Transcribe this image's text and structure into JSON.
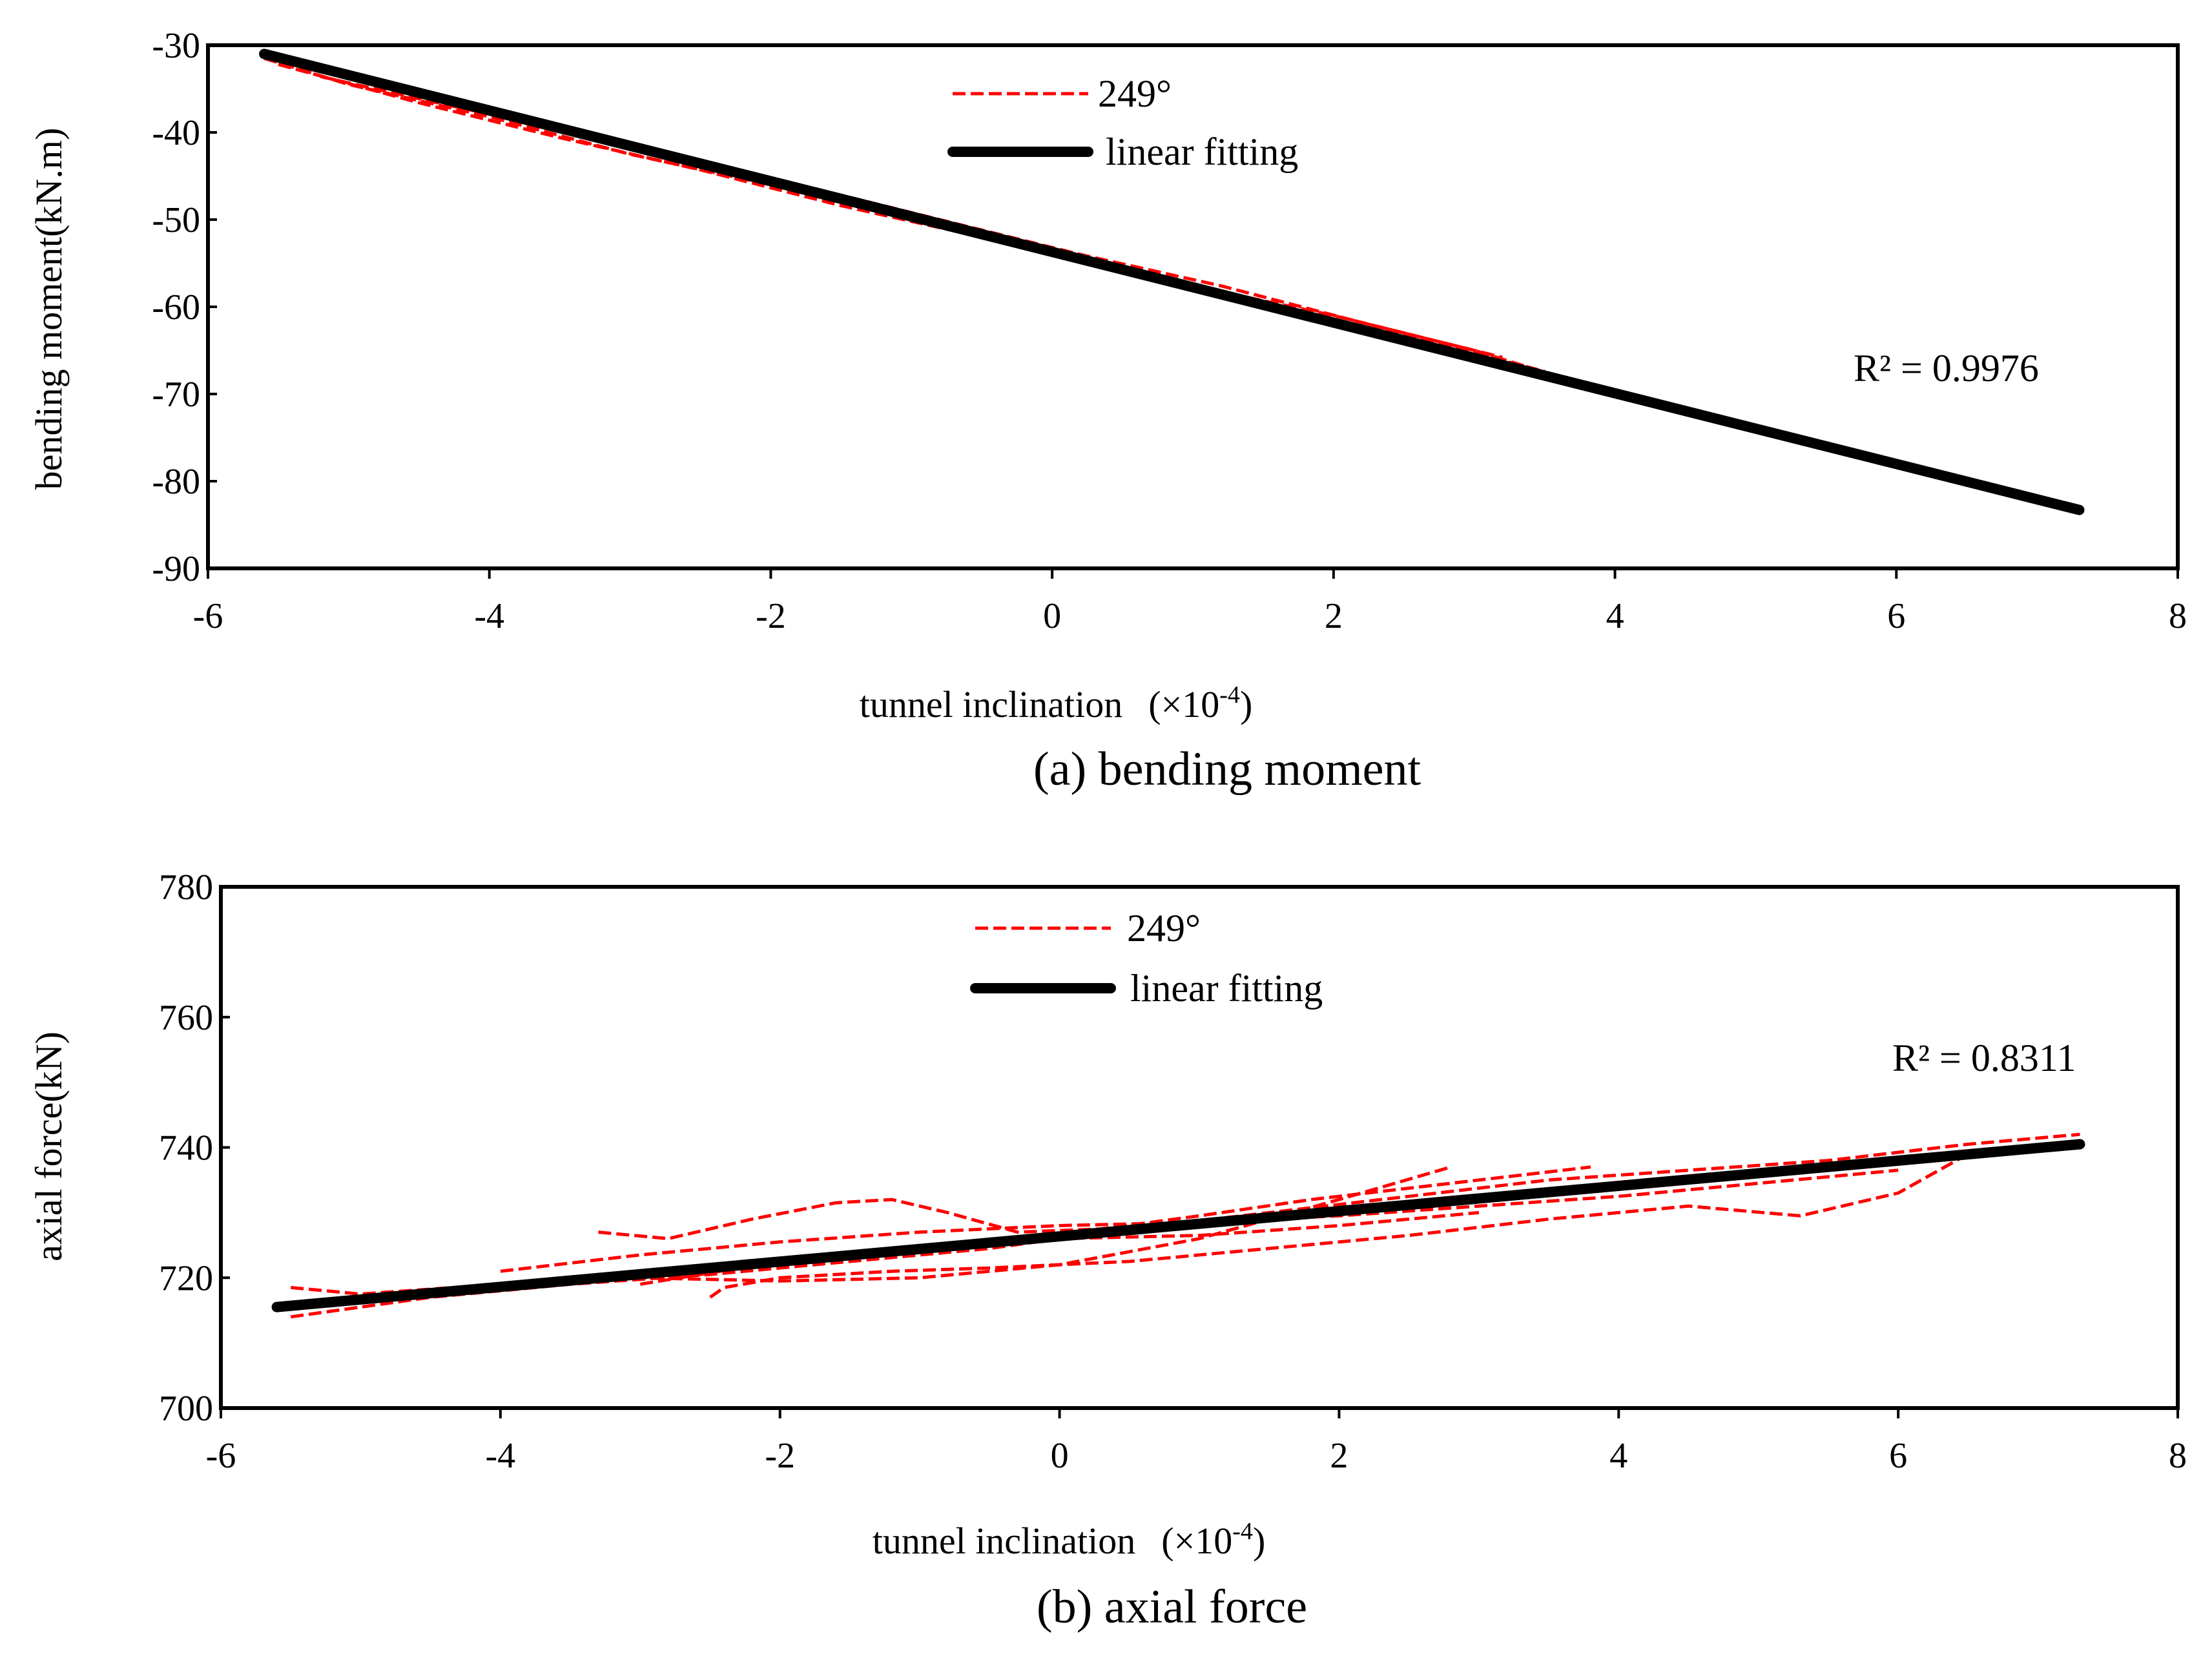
{
  "colors": {
    "measured": "#ff0000",
    "fit": "#000000",
    "axis": "#000000"
  },
  "chart_data": [
    {
      "type": "line",
      "caption": "(a)  bending moment",
      "xlabel": "tunnel inclination",
      "xlabel_unit": "(×10",
      "xlabel_exp": "-4",
      "xlabel_close": ")",
      "ylabel": "bending moment(kN.m)",
      "xlim": [
        -6,
        8
      ],
      "ylim": [
        -90,
        -30
      ],
      "xticks": [
        -6,
        -4,
        -2,
        0,
        2,
        4,
        6,
        8
      ],
      "yticks": [
        -30,
        -40,
        -50,
        -60,
        -70,
        -80,
        -90
      ],
      "legend_position": "top-center",
      "legend": [
        "249°",
        "linear fitting"
      ],
      "annotation": "R² = 0.9976",
      "series": [
        {
          "name": "249°",
          "style": "dashed",
          "color": "#ff0000",
          "segments": [
            {
              "x": [
                -5.6,
                -5.0,
                -4.0,
                -3.0,
                -2.0,
                -1.0,
                0.0,
                1.0,
                2.0,
                3.0,
                3.8
              ],
              "y": [
                -31.5,
                -34.5,
                -38.2,
                -42.5,
                -46.0,
                -50.0,
                -53.5,
                -57.6,
                -61.0,
                -65.0,
                -69.0
              ]
            },
            {
              "x": [
                -5.5,
                -4.5,
                -3.5,
                -2.5,
                -1.5,
                -0.5,
                0.5,
                1.5,
                2.5,
                3.5
              ],
              "y": [
                -32.2,
                -36.6,
                -40.6,
                -44.3,
                -48.4,
                -52.0,
                -56.0,
                -59.6,
                -63.3,
                -67.4
              ]
            },
            {
              "x": [
                -5.2,
                -4.2,
                -3.0,
                -2.0,
                -1.0,
                0.2,
                1.2,
                2.2,
                3.2
              ],
              "y": [
                -33.6,
                -37.2,
                -41.4,
                -45.2,
                -49.2,
                -54.0,
                -57.6,
                -61.8,
                -65.8
              ]
            },
            {
              "x": [
                4.0,
                5.0,
                6.0,
                7.3
              ],
              "y": [
                -70.0,
                -74.2,
                -78.2,
                -83.6
              ]
            }
          ]
        },
        {
          "name": "linear fitting",
          "style": "solid",
          "color": "#000000",
          "x": [
            -5.6,
            7.3
          ],
          "y": [
            -31.0,
            -83.3
          ]
        }
      ]
    },
    {
      "type": "line",
      "caption": "(b)  axial force",
      "xlabel": "tunnel inclination",
      "xlabel_unit": "(×10",
      "xlabel_exp": "-4",
      "xlabel_close": ")",
      "ylabel": "axial force(kN)",
      "xlim": [
        -6,
        8
      ],
      "ylim": [
        700,
        780
      ],
      "xticks": [
        -6,
        -4,
        -2,
        0,
        2,
        4,
        6,
        8
      ],
      "yticks": [
        780,
        760,
        740,
        720,
        700
      ],
      "legend_position": "top-center",
      "legend": [
        "249°",
        "linear fitting"
      ],
      "annotation": "R² = 0.8311",
      "series": [
        {
          "name": "249°",
          "style": "dashed",
          "color": "#ff0000",
          "segments": [
            {
              "x": [
                -5.5,
                -4.5,
                -3.5,
                -2.5,
                -1.5,
                -0.5,
                0.5,
                1.5,
                2.5,
                3.5,
                4.5,
                5.5,
                6.5,
                7.3
              ],
              "y": [
                714.0,
                717.0,
                719.0,
                720.5,
                722.5,
                724.5,
                727.5,
                730.0,
                732.5,
                735.0,
                736.5,
                738.0,
                740.5,
                742.0
              ]
            },
            {
              "x": [
                -5.5,
                -5.0,
                -4.0,
                -3.0,
                -2.0,
                -1.0,
                0.0,
                1.0,
                2.0,
                2.8
              ],
              "y": [
                718.5,
                717.5,
                719.0,
                720.0,
                719.5,
                720.0,
                722.0,
                726.0,
                732.0,
                737.0
              ]
            },
            {
              "x": [
                -3.3,
                -2.8,
                -2.2,
                -1.6,
                -1.2,
                -0.8,
                -0.3,
                0.3,
                1.0,
                1.8,
                2.8,
                3.8
              ],
              "y": [
                727.0,
                726.0,
                729.0,
                731.5,
                732.0,
                730.0,
                727.0,
                727.5,
                729.5,
                732.0,
                734.5,
                737.0
              ]
            },
            {
              "x": [
                -2.5,
                -2.4,
                -2.0,
                -1.2,
                -0.5,
                0.5,
                1.5,
                2.5,
                3.5,
                4.5,
                5.3,
                6.0,
                6.5
              ],
              "y": [
                717.0,
                718.5,
                720.0,
                721.0,
                721.5,
                722.5,
                724.5,
                726.5,
                729.0,
                731.0,
                729.5,
                733.0,
                739.0
              ]
            },
            {
              "x": [
                -4.0,
                -3.0,
                -2.0,
                -1.0,
                0.0,
                1.0,
                2.0,
                3.0,
                4.0,
                5.0,
                6.0
              ],
              "y": [
                721.0,
                723.5,
                725.5,
                727.0,
                728.0,
                728.5,
                729.5,
                731.0,
                732.5,
                734.5,
                736.5
              ]
            },
            {
              "x": [
                -3.0,
                -2.0,
                -1.0,
                0.0,
                1.0,
                2.0,
                3.0
              ],
              "y": [
                719.0,
                722.5,
                724.5,
                726.0,
                726.5,
                728.0,
                730.0
              ]
            }
          ]
        },
        {
          "name": "linear fitting",
          "style": "solid",
          "color": "#000000",
          "x": [
            -5.6,
            7.3
          ],
          "y": [
            715.5,
            740.5
          ]
        }
      ]
    }
  ]
}
